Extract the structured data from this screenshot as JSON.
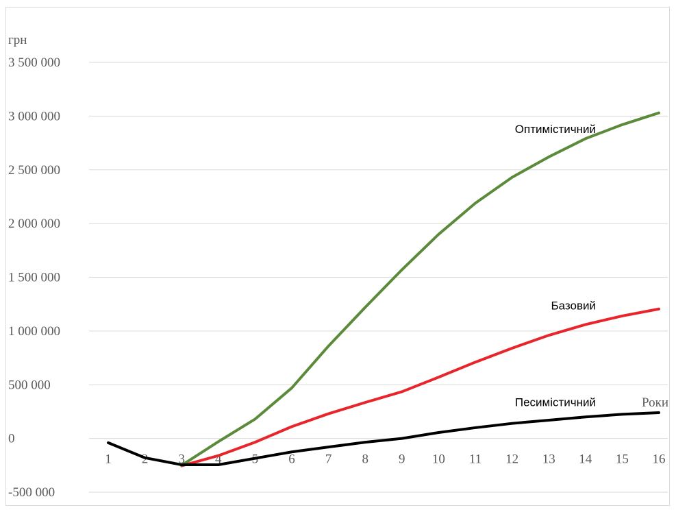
{
  "chart_data": {
    "type": "line",
    "ylabel": "грн",
    "xlabel": "Роки",
    "ylim": [
      -500000,
      3500000
    ],
    "yticks": [
      -500000,
      0,
      500000,
      1000000,
      1500000,
      2000000,
      2500000,
      3000000,
      3500000
    ],
    "ytick_labels": [
      "-500 000",
      "0",
      "500 000",
      "1 000 000",
      "1 500 000",
      "2 000 000",
      "2 500 000",
      "3 000 000",
      "3 500 000"
    ],
    "categories": [
      "1",
      "2",
      "3",
      "4",
      "5",
      "6",
      "7",
      "8",
      "9",
      "10",
      "11",
      "12",
      "13",
      "14",
      "15",
      "16"
    ],
    "grid": true,
    "legend": "none",
    "series": [
      {
        "name": "Оптимістичний",
        "color": "#5b8a3a",
        "values": [
          null,
          null,
          -250000,
          -30000,
          180000,
          470000,
          860000,
          1220000,
          1570000,
          1900000,
          2190000,
          2430000,
          2620000,
          2790000,
          2920000,
          3030000
        ]
      },
      {
        "name": "Базовий",
        "color": "#e8252a",
        "values": [
          null,
          null,
          -255000,
          -160000,
          -35000,
          110000,
          230000,
          335000,
          435000,
          570000,
          710000,
          840000,
          960000,
          1060000,
          1140000,
          1205000
        ]
      },
      {
        "name": "Песимістичний",
        "color": "#000000",
        "values": [
          -40000,
          -180000,
          -245000,
          -245000,
          -185000,
          -125000,
          -80000,
          -35000,
          0,
          55000,
          100000,
          140000,
          170000,
          200000,
          225000,
          240000
        ]
      }
    ]
  }
}
